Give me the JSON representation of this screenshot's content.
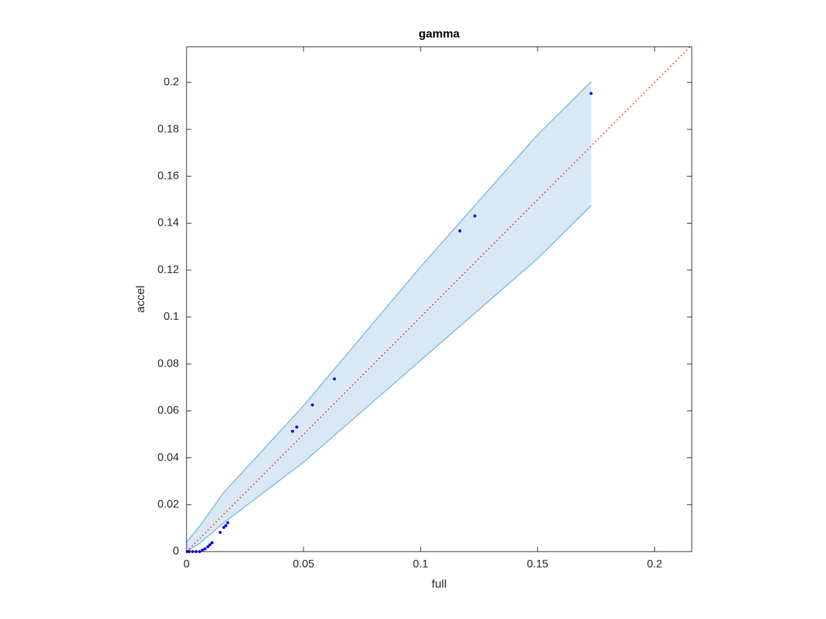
{
  "chart_data": {
    "type": "scatter",
    "title": "gamma",
    "x_label": "full",
    "y_label": "accel",
    "xlim": [
      0,
      0.2159
    ],
    "ylim": [
      0,
      0.2152
    ],
    "xticks": [
      0,
      0.05,
      0.1,
      0.15,
      0.2
    ],
    "yticks": [
      0,
      0.02,
      0.04,
      0.06,
      0.08,
      0.1,
      0.12,
      0.14,
      0.16,
      0.18,
      0.2
    ],
    "band": {
      "color": "#7fb8de",
      "fill": "#d9e8f5",
      "x": [
        0,
        0.0056,
        0.0159,
        0.05,
        0.1,
        0.15,
        0.1729
      ],
      "upper": [
        0.0041,
        0.0108,
        0.0252,
        0.0622,
        0.1214,
        0.1777,
        0.2003
      ],
      "lower": [
        0,
        0.0035,
        0.0123,
        0.0381,
        0.0815,
        0.1249,
        0.1475
      ]
    },
    "reference": {
      "color": "#ff0000",
      "x": [
        0,
        0.2159
      ],
      "values": [
        0,
        0.2159
      ]
    },
    "series": [
      {
        "color": "#0000ff",
        "x": [
          0.1729,
          0.1232,
          0.1168,
          0.0632,
          0.0538,
          0.0471,
          0.0453,
          0.0176,
          0.0168,
          0.0159,
          0.0144,
          0.0109,
          0.01,
          0.0091,
          0.0079,
          0.0068,
          0.0056,
          0.0041,
          0.0026,
          0.0012,
          0.0003
        ],
        "values": [
          0.1953,
          0.1431,
          0.1367,
          0.0736,
          0.0625,
          0.0531,
          0.0513,
          0.0123,
          0.0111,
          0.0103,
          0.0082,
          0.0038,
          0.0029,
          0.0021,
          0.0012,
          0.0006,
          0,
          0,
          0,
          0,
          0
        ]
      }
    ]
  }
}
